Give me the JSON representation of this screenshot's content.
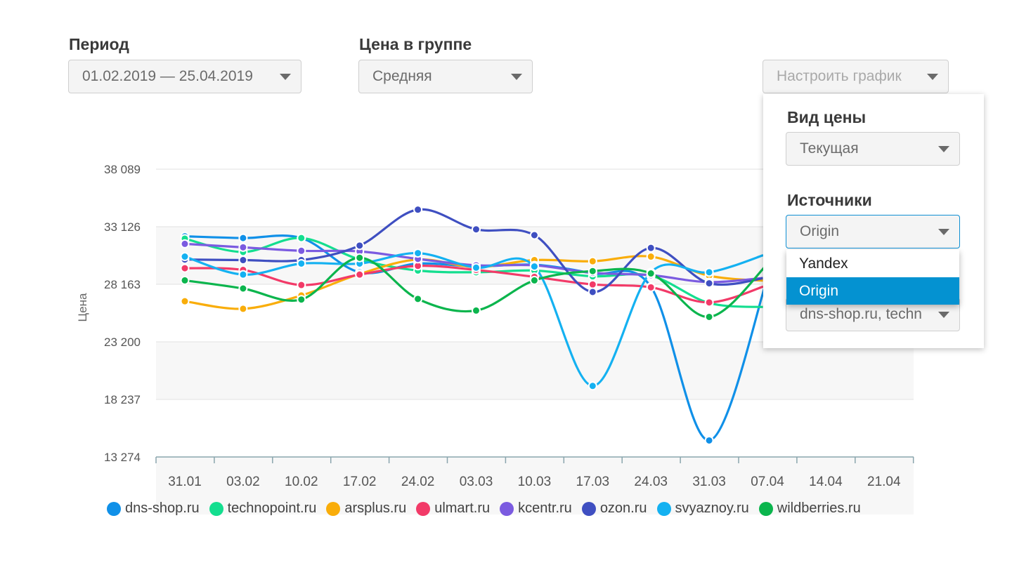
{
  "filters": {
    "period_label": "Период",
    "period_value": "01.02.2019 — 25.04.2019",
    "group_price_label": "Цена в группе",
    "group_price_value": "Средняя",
    "configure_button": "Настроить график"
  },
  "panel": {
    "price_type_label": "Вид цены",
    "price_type_value": "Текущая",
    "sources_label": "Источники",
    "sources_value": "Origin",
    "sources_options": [
      "Yandex",
      "Origin"
    ],
    "sources_selected": "Origin",
    "shops_value": "dns-shop.ru, techn"
  },
  "chart_data": {
    "type": "line",
    "ylabel": "Цена",
    "yticks": [
      "38 089",
      "33 126",
      "28 163",
      "23 200",
      "18 237",
      "13 274"
    ],
    "ylim": [
      13274,
      38089
    ],
    "categories": [
      "31.01",
      "03.02",
      "10.02",
      "17.02",
      "24.02",
      "03.03",
      "10.03",
      "17.03",
      "24.03",
      "31.03",
      "07.04",
      "14.04",
      "21.04"
    ],
    "grid": true,
    "legend_position": "bottom",
    "series": [
      {
        "name": "dns-shop.ru",
        "color": "#1090e8",
        "values": [
          32300,
          32150,
          32150,
          29200,
          29950,
          29700,
          29850,
          29100,
          27950,
          14700,
          28700,
          null,
          null
        ]
      },
      {
        "name": "technopoint.ru",
        "color": "#14de8f",
        "values": [
          32100,
          30950,
          32150,
          30300,
          29350,
          29200,
          29350,
          28850,
          28900,
          26550,
          26200,
          null,
          null
        ]
      },
      {
        "name": "arsplus.ru",
        "color": "#f9ad0a",
        "values": [
          26700,
          26050,
          27200,
          29050,
          30300,
          29650,
          30250,
          30150,
          30550,
          28900,
          28450,
          null,
          null
        ]
      },
      {
        "name": "ulmart.ru",
        "color": "#f23a68",
        "values": [
          29550,
          29400,
          28100,
          29000,
          29750,
          29400,
          28800,
          28150,
          27900,
          26600,
          28100,
          null,
          null
        ]
      },
      {
        "name": "kcentr.ru",
        "color": "#7b5be0",
        "values": [
          31650,
          31350,
          31050,
          31000,
          30350,
          29800,
          29800,
          29150,
          28950,
          28350,
          28750,
          null,
          null
        ]
      },
      {
        "name": "ozon.ru",
        "color": "#3f4fc1",
        "values": [
          30300,
          30250,
          30250,
          31500,
          34600,
          32900,
          32400,
          27500,
          31300,
          28250,
          28750,
          null,
          null
        ]
      },
      {
        "name": "svyaznoy.ru",
        "color": "#14b1f1",
        "values": [
          30550,
          29000,
          29950,
          29950,
          30850,
          29600,
          29700,
          19400,
          29200,
          29200,
          30800,
          null,
          null
        ]
      },
      {
        "name": "wildberries.ru",
        "color": "#0bb54d",
        "values": [
          28500,
          27800,
          26850,
          30450,
          26900,
          25900,
          28500,
          29300,
          29100,
          25350,
          29900,
          null,
          null
        ]
      }
    ]
  }
}
